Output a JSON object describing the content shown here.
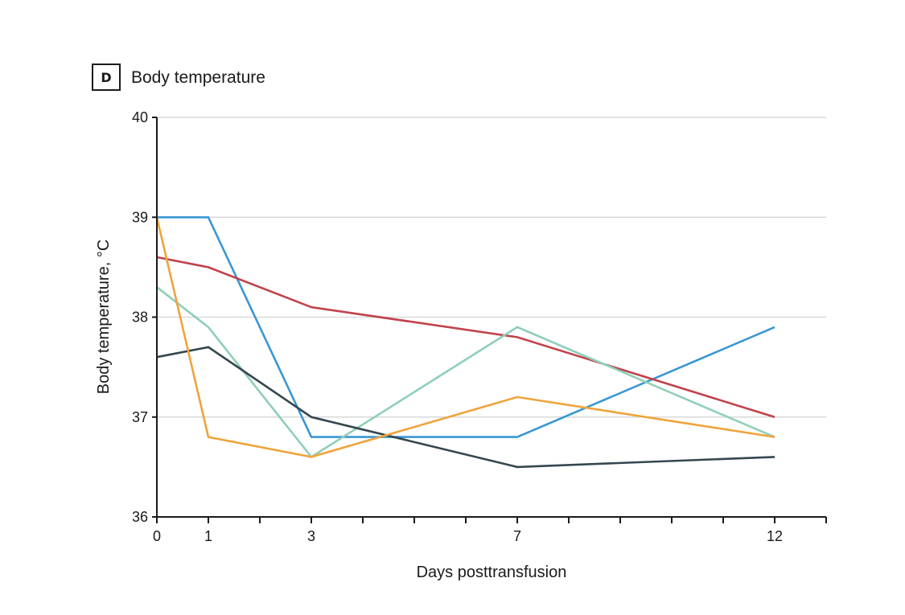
{
  "panel": {
    "letter": "D",
    "title": "Body temperature"
  },
  "chart_data": {
    "type": "line",
    "title": "Body temperature",
    "xlabel": "Days posttransfusion",
    "ylabel": "Body temperature, °C",
    "xlim": [
      0,
      13
    ],
    "ylim": [
      36,
      40
    ],
    "x_ticks_labeled": [
      0,
      1,
      3,
      7,
      12
    ],
    "x_ticks_minor": [
      2,
      4,
      5,
      6,
      8,
      9,
      10,
      11,
      13
    ],
    "y_ticks": [
      36,
      37,
      38,
      39,
      40
    ],
    "grid": "horizontal",
    "x": [
      0,
      1,
      3,
      7,
      12
    ],
    "series": [
      {
        "color": "#3a97d4",
        "values": [
          39.0,
          39.0,
          36.8,
          36.8,
          37.9
        ]
      },
      {
        "color": "#c0434b",
        "values": [
          38.6,
          38.5,
          38.1,
          37.8,
          37.0
        ]
      },
      {
        "color": "#8fcfb8",
        "values": [
          38.3,
          37.9,
          36.6,
          37.9,
          36.8
        ]
      },
      {
        "color": "#34474f",
        "values": [
          37.6,
          37.7,
          37.0,
          36.5,
          36.6
        ]
      },
      {
        "color": "#f0a33c",
        "values": [
          39.0,
          36.8,
          36.6,
          37.2,
          36.8
        ]
      }
    ]
  }
}
